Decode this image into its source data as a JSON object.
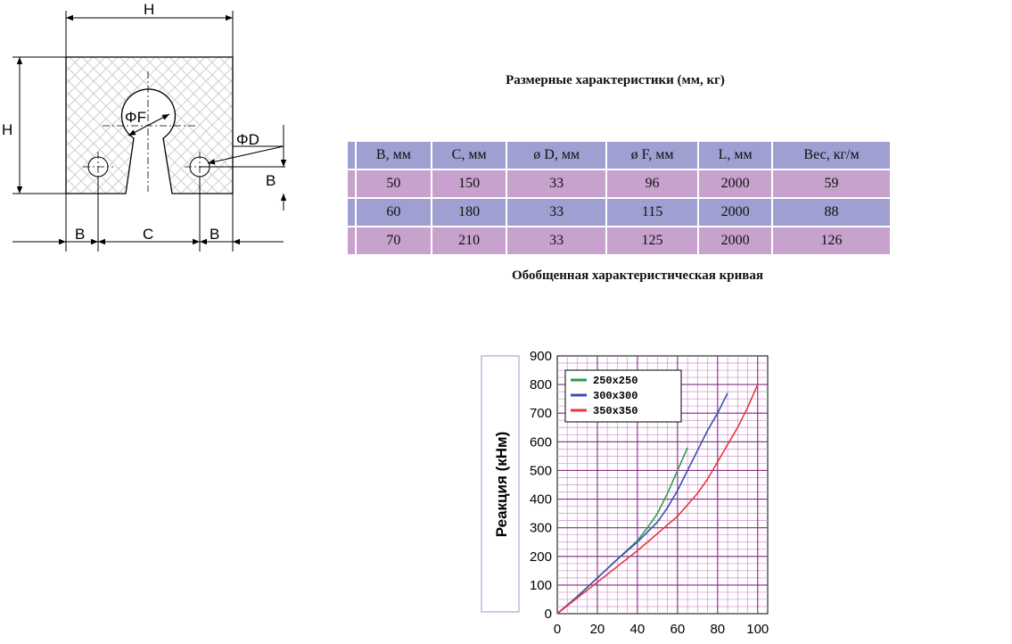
{
  "drawing": {
    "dim_H_top": "H",
    "dim_H_left": "H",
    "dim_F": "ΦF",
    "dim_D": "ΦD",
    "dim_B_right": "B",
    "dim_B_left": "B",
    "dim_C": "C",
    "dim_B_bottom_right": "B"
  },
  "table_title": "Размерные характеристики (мм, кг)",
  "table": {
    "headers": [
      "B,  мм",
      "C,  мм",
      "ø D,  мм",
      "ø  F,  мм",
      "L,  мм",
      "Вес, кг/м"
    ],
    "rows": [
      [
        "50",
        "150",
        "33",
        "96",
        "2000",
        "59"
      ],
      [
        "60",
        "180",
        "33",
        "115",
        "2000",
        "88"
      ],
      [
        "70",
        "210",
        "33",
        "125",
        "2000",
        "126"
      ]
    ],
    "colors": {
      "header": "#9f9fd2",
      "odd": "#c7a2cd",
      "even": "#9f9fd2"
    }
  },
  "curve_title": "Обобщенная характеристическая кривая",
  "chart_data": {
    "type": "line",
    "title": "",
    "xlabel": "",
    "ylabel": "Реакция (кНм)",
    "xlim": [
      0,
      105
    ],
    "ylim": [
      0,
      900
    ],
    "x_ticks": [
      0,
      20,
      40,
      60,
      80,
      100
    ],
    "y_ticks": [
      0,
      100,
      200,
      300,
      400,
      500,
      600,
      700,
      800,
      900
    ],
    "grid": true,
    "legend_position": "top-left",
    "series": [
      {
        "name": "250x250",
        "color": "#2e9e4a",
        "x": [
          0,
          10,
          20,
          30,
          40,
          45,
          50,
          55,
          60,
          65
        ],
        "y": [
          0,
          60,
          125,
          190,
          255,
          300,
          350,
          420,
          500,
          580
        ]
      },
      {
        "name": "300x300",
        "color": "#3a50b0",
        "x": [
          0,
          10,
          20,
          30,
          40,
          50,
          55,
          60,
          65,
          70,
          75,
          80,
          85
        ],
        "y": [
          0,
          60,
          125,
          190,
          250,
          320,
          370,
          430,
          500,
          570,
          640,
          700,
          770
        ]
      },
      {
        "name": "350x350",
        "color": "#e8363c",
        "x": [
          0,
          10,
          20,
          30,
          40,
          50,
          60,
          70,
          75,
          80,
          85,
          90,
          95,
          100
        ],
        "y": [
          0,
          55,
          110,
          165,
          220,
          280,
          340,
          420,
          470,
          530,
          590,
          650,
          720,
          800
        ]
      }
    ]
  }
}
